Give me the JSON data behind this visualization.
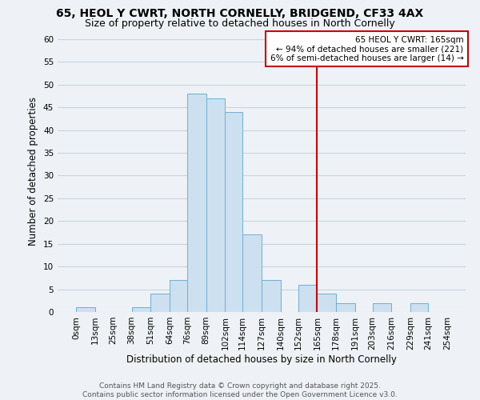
{
  "title": "65, HEOL Y CWRT, NORTH CORNELLY, BRIDGEND, CF33 4AX",
  "subtitle": "Size of property relative to detached houses in North Cornelly",
  "xlabel": "Distribution of detached houses by size in North Cornelly",
  "ylabel": "Number of detached properties",
  "bin_edges": [
    0,
    13,
    25,
    38,
    51,
    64,
    76,
    89,
    102,
    114,
    127,
    140,
    152,
    165,
    178,
    191,
    203,
    216,
    229,
    241,
    254
  ],
  "bar_heights": [
    1,
    0,
    0,
    1,
    4,
    7,
    48,
    47,
    44,
    17,
    7,
    0,
    6,
    4,
    2,
    0,
    2,
    0,
    2,
    0
  ],
  "bar_facecolor": "#cce0f0",
  "bar_edgecolor": "#6dafd4",
  "grid_color": "#c8d4e0",
  "background_color": "#eef2f7",
  "vline_x": 165,
  "vline_color": "#cc0000",
  "annotation_title": "65 HEOL Y CWRT: 165sqm",
  "annotation_line1": "← 94% of detached houses are smaller (221)",
  "annotation_line2": "6% of semi-detached houses are larger (14) →",
  "annotation_box_facecolor": "#ffffff",
  "annotation_box_edgecolor": "#cc0000",
  "ylim": [
    0,
    62
  ],
  "yticks": [
    0,
    5,
    10,
    15,
    20,
    25,
    30,
    35,
    40,
    45,
    50,
    55,
    60
  ],
  "xtick_labels": [
    "0sqm",
    "13sqm",
    "25sqm",
    "38sqm",
    "51sqm",
    "64sqm",
    "76sqm",
    "89sqm",
    "102sqm",
    "114sqm",
    "127sqm",
    "140sqm",
    "152sqm",
    "165sqm",
    "178sqm",
    "191sqm",
    "203sqm",
    "216sqm",
    "229sqm",
    "241sqm",
    "254sqm"
  ],
  "footer_line1": "Contains HM Land Registry data © Crown copyright and database right 2025.",
  "footer_line2": "Contains public sector information licensed under the Open Government Licence v3.0.",
  "title_fontsize": 10,
  "subtitle_fontsize": 9,
  "axis_label_fontsize": 8.5,
  "tick_fontsize": 7.5,
  "footer_fontsize": 6.5
}
